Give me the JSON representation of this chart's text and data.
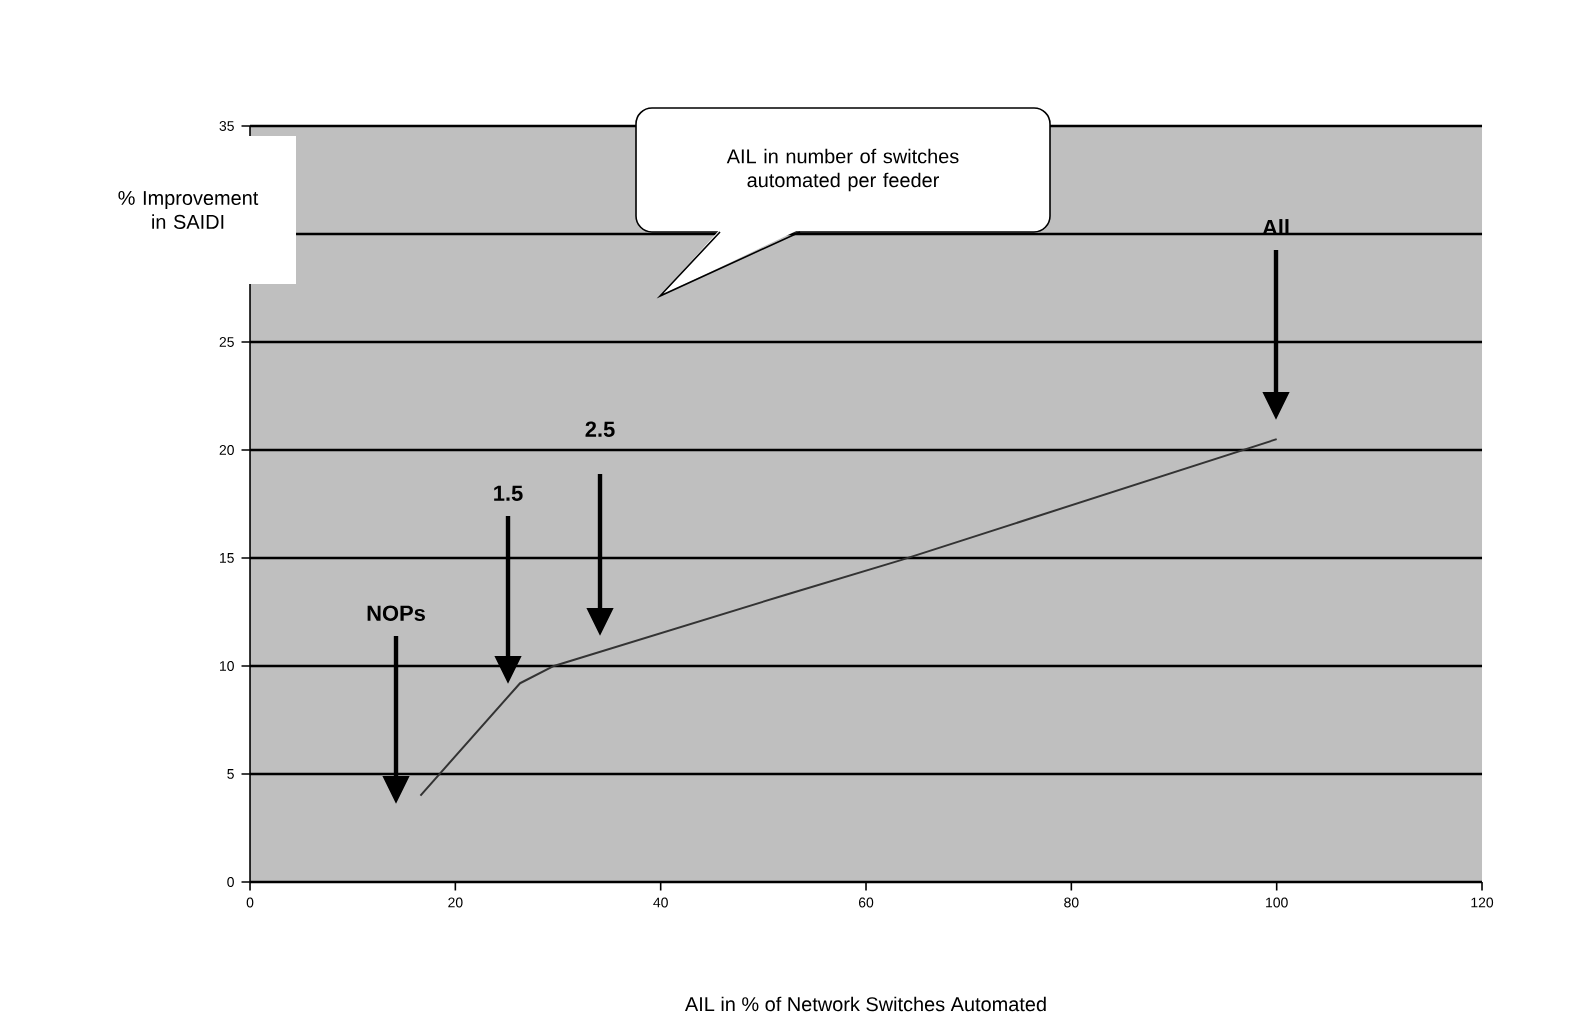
{
  "chart_data": {
    "type": "line",
    "xlabel": "AIL in % of Network Switches Automated",
    "ylabel": "% Improvement in SAIDI",
    "annotations": [
      "NOPs",
      "1.5",
      "2.5",
      "All",
      "AIL in number of switches automated per feeder"
    ],
    "series": [
      {
        "color": "#333333",
        "x": [
          16.6,
          26.3,
          29.6,
          52.2,
          63.4,
          100
        ],
        "values": [
          4.0,
          9.2,
          10.0,
          13.3,
          14.9,
          20.5
        ]
      }
    ],
    "xlim": [
      0,
      120
    ],
    "xticks": [
      0,
      20,
      40,
      60,
      80,
      100,
      120
    ],
    "ylim": [
      0,
      35
    ],
    "yticks": [
      0,
      5,
      10,
      15,
      20,
      25,
      {
        "value": 30,
        "label": null
      },
      35
    ],
    "grid": "y",
    "marker": "none",
    "line_style": "solid"
  }
}
